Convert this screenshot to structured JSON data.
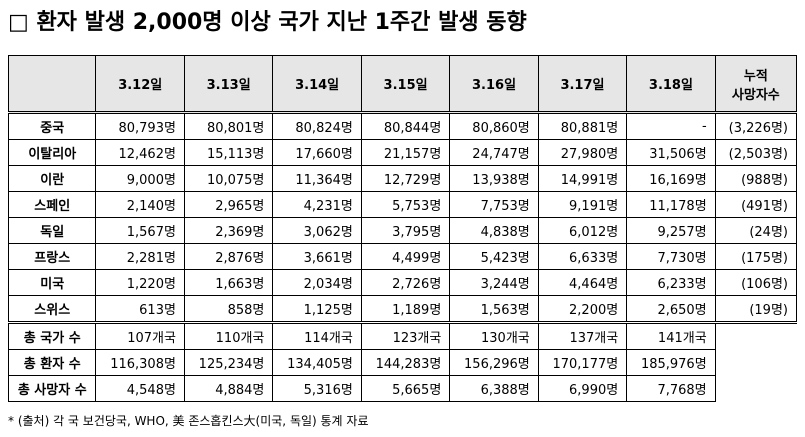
{
  "title": "□ 환자 발생 2,000명 이상 국가 지난 1주간 발생 동향",
  "table": {
    "columns": [
      "3.12일",
      "3.13일",
      "3.14일",
      "3.15일",
      "3.16일",
      "3.17일",
      "3.18일"
    ],
    "cumulative_header": [
      "누적",
      "사망자수"
    ],
    "rows": [
      {
        "country": "중국",
        "values": [
          "80,793명",
          "80,801명",
          "80,824명",
          "80,844명",
          "80,860명",
          "80,881명",
          "-"
        ],
        "deaths": "(3,226명)"
      },
      {
        "country": "이탈리아",
        "values": [
          "12,462명",
          "15,113명",
          "17,660명",
          "21,157명",
          "24,747명",
          "27,980명",
          "31,506명"
        ],
        "deaths": "(2,503명)"
      },
      {
        "country": "이란",
        "values": [
          "9,000명",
          "10,075명",
          "11,364명",
          "12,729명",
          "13,938명",
          "14,991명",
          "16,169명"
        ],
        "deaths": "(988명)"
      },
      {
        "country": "스페인",
        "values": [
          "2,140명",
          "2,965명",
          "4,231명",
          "5,753명",
          "7,753명",
          "9,191명",
          "11,178명"
        ],
        "deaths": "(491명)"
      },
      {
        "country": "독일",
        "values": [
          "1,567명",
          "2,369명",
          "3,062명",
          "3,795명",
          "4,838명",
          "6,012명",
          "9,257명"
        ],
        "deaths": "(24명)"
      },
      {
        "country": "프랑스",
        "values": [
          "2,281명",
          "2,876명",
          "3,661명",
          "4,499명",
          "5,423명",
          "6,633명",
          "7,730명"
        ],
        "deaths": "(175명)"
      },
      {
        "country": "미국",
        "values": [
          "1,220명",
          "1,663명",
          "2,034명",
          "2,726명",
          "3,244명",
          "4,464명",
          "6,233명"
        ],
        "deaths": "(106명)"
      },
      {
        "country": "스위스",
        "values": [
          "613명",
          "858명",
          "1,125명",
          "1,189명",
          "1,563명",
          "2,200명",
          "2,650명"
        ],
        "deaths": "(19명)"
      }
    ],
    "summary": [
      {
        "label": "총 국가 수",
        "values": [
          "107개국",
          "110개국",
          "114개국",
          "123개국",
          "130개국",
          "137개국",
          "141개국"
        ]
      },
      {
        "label": "총 환자 수",
        "values": [
          "116,308명",
          "125,234명",
          "134,405명",
          "144,283명",
          "156,296명",
          "170,177명",
          "185,976명"
        ]
      },
      {
        "label": "총 사망자 수",
        "values": [
          "4,548명",
          "4,884명",
          "5,316명",
          "5,665명",
          "6,388명",
          "6,990명",
          "7,768명"
        ]
      }
    ]
  },
  "footnote": "* (출처) 각 국 보건당국, WHO, 美 존스홉킨스大(미국, 독일) 통계 자료"
}
